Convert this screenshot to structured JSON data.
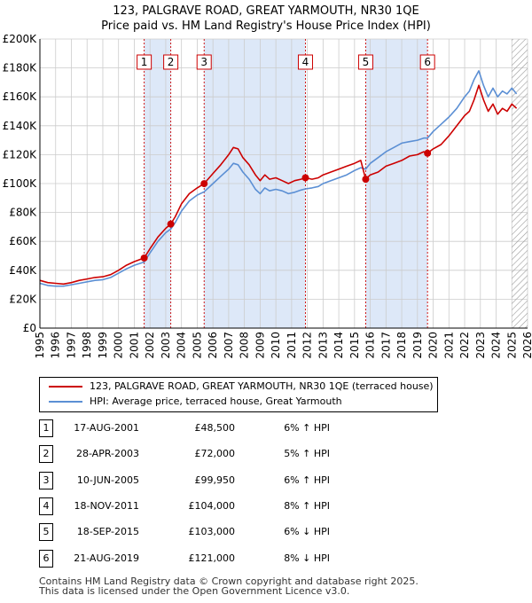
{
  "title_line1": "123, PALGRAVE ROAD, GREAT YARMOUTH, NR30 1QE",
  "title_line2": "Price paid vs. HM Land Registry's House Price Index (HPI)",
  "colors": {
    "property": "#cc0000",
    "hpi": "#5b8fd4",
    "shade": "#dde8f8",
    "grid": "#cccccc"
  },
  "legend": {
    "property_label": "123, PALGRAVE ROAD, GREAT YARMOUTH, NR30 1QE (terraced house)",
    "hpi_label": "HPI: Average price, terraced house, Great Yarmouth"
  },
  "sales": [
    {
      "num": "1",
      "date": "17-AUG-2001",
      "price": "£48,500",
      "hpi": "6% ↑ HPI"
    },
    {
      "num": "2",
      "date": "28-APR-2003",
      "price": "£72,000",
      "hpi": "5% ↑ HPI"
    },
    {
      "num": "3",
      "date": "10-JUN-2005",
      "price": "£99,950",
      "hpi": "6% ↑ HPI"
    },
    {
      "num": "4",
      "date": "18-NOV-2011",
      "price": "£104,000",
      "hpi": "8% ↑ HPI"
    },
    {
      "num": "5",
      "date": "18-SEP-2015",
      "price": "£103,000",
      "hpi": "6% ↓ HPI"
    },
    {
      "num": "6",
      "date": "21-AUG-2019",
      "price": "£121,000",
      "hpi": "8% ↓ HPI"
    }
  ],
  "footer_line1": "Contains HM Land Registry data © Crown copyright and database right 2025.",
  "footer_line2": "This data is licensed under the Open Government Licence v3.0.",
  "chart_data": {
    "type": "line",
    "title": "123, PALGRAVE ROAD, GREAT YARMOUTH, NR30 1QE — Price paid vs. HM Land Registry's House Price Index (HPI)",
    "xlabel": "",
    "ylabel": "",
    "xlim": [
      1995,
      2026
    ],
    "ylim": [
      0,
      200000
    ],
    "x_ticks": [
      1995,
      1996,
      1997,
      1998,
      1999,
      2000,
      2001,
      2002,
      2003,
      2004,
      2005,
      2006,
      2007,
      2008,
      2009,
      2010,
      2011,
      2012,
      2013,
      2014,
      2015,
      2016,
      2017,
      2018,
      2019,
      2020,
      2021,
      2022,
      2023,
      2024,
      2025,
      2026
    ],
    "y_ticks": [
      {
        "value": 0,
        "label": "£0"
      },
      {
        "value": 20000,
        "label": "£20K"
      },
      {
        "value": 40000,
        "label": "£40K"
      },
      {
        "value": 60000,
        "label": "£60K"
      },
      {
        "value": 80000,
        "label": "£80K"
      },
      {
        "value": 100000,
        "label": "£100K"
      },
      {
        "value": 120000,
        "label": "£120K"
      },
      {
        "value": 140000,
        "label": "£140K"
      },
      {
        "value": 160000,
        "label": "£160K"
      },
      {
        "value": 180000,
        "label": "£180K"
      },
      {
        "value": 200000,
        "label": "£200K"
      }
    ],
    "shaded_periods": [
      [
        2001.63,
        2003.32
      ],
      [
        2005.44,
        2011.88
      ],
      [
        2015.71,
        2019.64
      ]
    ],
    "hatched_from": 2025.0,
    "sale_markers": [
      {
        "label": "1",
        "x": 2001.63,
        "y": 48500
      },
      {
        "label": "2",
        "x": 2003.32,
        "y": 72000
      },
      {
        "label": "3",
        "x": 2005.44,
        "y": 99950
      },
      {
        "label": "4",
        "x": 2011.88,
        "y": 104000
      },
      {
        "label": "5",
        "x": 2015.71,
        "y": 103000
      },
      {
        "label": "6",
        "x": 2019.64,
        "y": 121000
      }
    ],
    "series": [
      {
        "name": "123, PALGRAVE ROAD, GREAT YARMOUTH, NR30 1QE (terraced house)",
        "x": [
          1995.0,
          1995.5,
          1996.0,
          1996.5,
          1997.0,
          1997.5,
          1998.0,
          1998.5,
          1999.0,
          1999.5,
          2000.0,
          2000.5,
          2001.0,
          2001.63,
          2002.0,
          2002.5,
          2003.0,
          2003.32,
          2003.6,
          2004.0,
          2004.5,
          2005.0,
          2005.44,
          2006.0,
          2006.5,
          2007.0,
          2007.3,
          2007.6,
          2007.9,
          2008.3,
          2008.7,
          2009.0,
          2009.3,
          2009.6,
          2010.0,
          2010.4,
          2010.8,
          2011.2,
          2011.6,
          2011.88,
          2012.3,
          2012.7,
          2013.0,
          2013.5,
          2014.0,
          2014.5,
          2015.0,
          2015.4,
          2015.71,
          2016.0,
          2016.5,
          2017.0,
          2017.5,
          2018.0,
          2018.5,
          2019.0,
          2019.4,
          2019.64,
          2020.0,
          2020.5,
          2021.0,
          2021.5,
          2022.0,
          2022.3,
          2022.6,
          2022.9,
          2023.2,
          2023.5,
          2023.8,
          2024.1,
          2024.4,
          2024.7,
          2025.0,
          2025.3
        ],
        "y": [
          33000,
          31500,
          31000,
          30500,
          31500,
          33000,
          34000,
          35000,
          35500,
          37000,
          40000,
          43500,
          46000,
          48500,
          55000,
          63000,
          69000,
          72000,
          77000,
          86000,
          93000,
          97000,
          99950,
          107000,
          113000,
          120000,
          125000,
          124000,
          118000,
          113000,
          106000,
          102000,
          106000,
          103000,
          104000,
          102000,
          100000,
          102000,
          103000,
          104000,
          103000,
          104000,
          106000,
          108000,
          110000,
          112000,
          114000,
          116000,
          103000,
          106000,
          108000,
          112000,
          114000,
          116000,
          119000,
          120000,
          122000,
          121000,
          124000,
          127000,
          133000,
          140000,
          147000,
          150000,
          158000,
          168000,
          158000,
          150000,
          155000,
          148000,
          152000,
          150000,
          155000,
          152000
        ]
      },
      {
        "name": "HPI: Average price, terraced house, Great Yarmouth",
        "x": [
          1995.0,
          1995.5,
          1996.0,
          1996.5,
          1997.0,
          1997.5,
          1998.0,
          1998.5,
          1999.0,
          1999.5,
          2000.0,
          2000.5,
          2001.0,
          2001.63,
          2002.0,
          2002.5,
          2003.0,
          2003.32,
          2003.6,
          2004.0,
          2004.5,
          2005.0,
          2005.44,
          2006.0,
          2006.5,
          2007.0,
          2007.3,
          2007.6,
          2007.9,
          2008.3,
          2008.7,
          2009.0,
          2009.3,
          2009.6,
          2010.0,
          2010.4,
          2010.8,
          2011.2,
          2011.6,
          2011.88,
          2012.3,
          2012.7,
          2013.0,
          2013.5,
          2014.0,
          2014.5,
          2015.0,
          2015.4,
          2015.71,
          2016.0,
          2016.5,
          2017.0,
          2017.5,
          2018.0,
          2018.5,
          2019.0,
          2019.4,
          2019.64,
          2020.0,
          2020.5,
          2021.0,
          2021.5,
          2022.0,
          2022.3,
          2022.6,
          2022.9,
          2023.2,
          2023.5,
          2023.8,
          2024.1,
          2024.4,
          2024.7,
          2025.0,
          2025.3
        ],
        "y": [
          31000,
          29500,
          29000,
          29000,
          30000,
          31000,
          32000,
          33000,
          33500,
          35000,
          38000,
          41000,
          43500,
          45700,
          52000,
          60000,
          66000,
          68500,
          73000,
          81000,
          88000,
          92000,
          94300,
          100000,
          105000,
          110000,
          114000,
          113000,
          108000,
          103000,
          96000,
          93000,
          97000,
          95000,
          96000,
          95000,
          93000,
          94000,
          95500,
          96300,
          97000,
          98000,
          100000,
          102000,
          104000,
          106000,
          109000,
          111000,
          110000,
          114000,
          118000,
          122000,
          125000,
          128000,
          129000,
          130000,
          131500,
          131500,
          136000,
          141000,
          146000,
          152000,
          160000,
          164000,
          172000,
          178000,
          168000,
          160000,
          166000,
          160000,
          164000,
          162000,
          166000,
          162000
        ]
      }
    ]
  }
}
